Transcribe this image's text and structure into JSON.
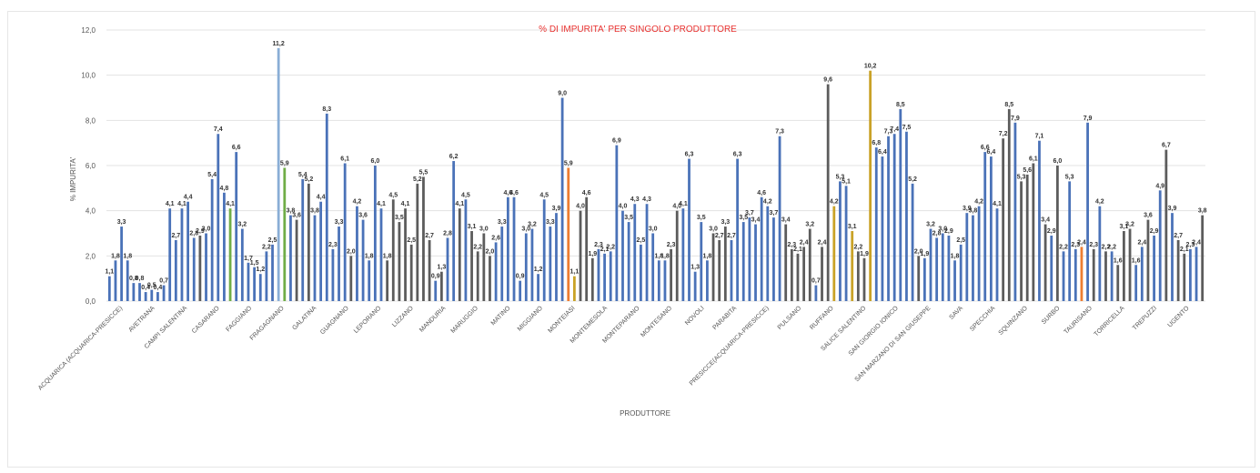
{
  "chart_data": {
    "type": "bar",
    "title": "% DI IMPURITA' PER SINGOLO PRODUTTORE",
    "xlabel": "PRODUTTORE",
    "ylabel": "% IMPURITA'",
    "ylim": [
      0,
      12
    ],
    "yticks": [
      "0,0",
      "2,0",
      "4,0",
      "6,0",
      "8,0",
      "10,0",
      "12,0"
    ],
    "grid": true,
    "legend": "none",
    "series_colors": [
      "#4a72b8",
      "#5c5c5c",
      "#70ad47",
      "#c9a227",
      "#ed7d31",
      "#8aaed6"
    ],
    "category_labels": [
      "ACQUARICA (ACQUARICA-PRESICCE)",
      "AVETRANA",
      "CAMPI SALENTINA",
      "CASARANO",
      "FAGGIANO",
      "FRAGAGNANO",
      "GALATINA",
      "GUAGNANO",
      "LEPORANO",
      "LIZZANO",
      "MANDURIA",
      "MARUGGIO",
      "MATINO",
      "MIGGIANO",
      "MONTEIASI",
      "MONTEMESOLA",
      "MONTEPARANO",
      "MONTESANO",
      "NOVOLI",
      "PARABITA",
      "PRESICCE(ACQUARICA-PRESICCE)",
      "PULSANO",
      "RUFFANO",
      "SALICE SALENTINO",
      "SAN GIORGIO IONICO",
      "SAN MARZANO DI SAN GIUSEPPE",
      "SAVA",
      "SPECCHIA",
      "SQUINZANO",
      "SURBO",
      "TAURISANO",
      "TORRICELLA",
      "TREPUZZI",
      "UGENTO"
    ],
    "bars": [
      {
        "v": 1.1,
        "c": 0
      },
      {
        "v": 1.8,
        "c": 0
      },
      {
        "v": 3.3,
        "c": 0
      },
      {
        "v": 1.8,
        "c": 0
      },
      {
        "v": 0.8,
        "c": 0
      },
      {
        "v": 0.8,
        "c": 0
      },
      {
        "v": 0.4,
        "c": 0
      },
      {
        "v": 0.5,
        "c": 0
      },
      {
        "v": 0.4,
        "c": 0
      },
      {
        "v": 0.7,
        "c": 0
      },
      {
        "v": 4.1,
        "c": 0
      },
      {
        "v": 2.7,
        "c": 0
      },
      {
        "v": 4.1,
        "c": 0
      },
      {
        "v": 4.4,
        "c": 0
      },
      {
        "v": 2.8,
        "c": 0
      },
      {
        "v": 2.9,
        "c": 1
      },
      {
        "v": 3.0,
        "c": 0
      },
      {
        "v": 5.4,
        "c": 0
      },
      {
        "v": 7.4,
        "c": 0
      },
      {
        "v": 4.8,
        "c": 0
      },
      {
        "v": 4.1,
        "c": 2
      },
      {
        "v": 6.6,
        "c": 0
      },
      {
        "v": 3.2,
        "c": 0
      },
      {
        "v": 1.7,
        "c": 0
      },
      {
        "v": 1.5,
        "c": 0
      },
      {
        "v": 1.2,
        "c": 0
      },
      {
        "v": 2.2,
        "c": 0
      },
      {
        "v": 2.5,
        "c": 0
      },
      {
        "v": 11.2,
        "c": 5
      },
      {
        "v": 5.9,
        "c": 2
      },
      {
        "v": 3.8,
        "c": 0
      },
      {
        "v": 3.6,
        "c": 1
      },
      {
        "v": 5.4,
        "c": 0
      },
      {
        "v": 5.2,
        "c": 1
      },
      {
        "v": 3.8,
        "c": 0
      },
      {
        "v": 4.4,
        "c": 0
      },
      {
        "v": 8.3,
        "c": 0
      },
      {
        "v": 2.3,
        "c": 0
      },
      {
        "v": 3.3,
        "c": 0
      },
      {
        "v": 6.1,
        "c": 0
      },
      {
        "v": 2.0,
        "c": 1
      },
      {
        "v": 4.2,
        "c": 0
      },
      {
        "v": 3.6,
        "c": 0
      },
      {
        "v": 1.8,
        "c": 0
      },
      {
        "v": 6.0,
        "c": 0
      },
      {
        "v": 4.1,
        "c": 0
      },
      {
        "v": 1.8,
        "c": 1
      },
      {
        "v": 4.5,
        "c": 1
      },
      {
        "v": 3.5,
        "c": 1
      },
      {
        "v": 4.1,
        "c": 1
      },
      {
        "v": 2.5,
        "c": 1
      },
      {
        "v": 5.2,
        "c": 1
      },
      {
        "v": 5.5,
        "c": 1
      },
      {
        "v": 2.7,
        "c": 1
      },
      {
        "v": 0.9,
        "c": 0
      },
      {
        "v": 1.3,
        "c": 1
      },
      {
        "v": 2.8,
        "c": 0
      },
      {
        "v": 6.2,
        "c": 0
      },
      {
        "v": 4.1,
        "c": 1
      },
      {
        "v": 4.5,
        "c": 0
      },
      {
        "v": 3.1,
        "c": 1
      },
      {
        "v": 2.2,
        "c": 1
      },
      {
        "v": 3.0,
        "c": 1
      },
      {
        "v": 2.0,
        "c": 1
      },
      {
        "v": 2.6,
        "c": 0
      },
      {
        "v": 3.3,
        "c": 0
      },
      {
        "v": 4.6,
        "c": 0
      },
      {
        "v": 4.6,
        "c": 0
      },
      {
        "v": 0.9,
        "c": 0
      },
      {
        "v": 3.0,
        "c": 0
      },
      {
        "v": 3.2,
        "c": 0
      },
      {
        "v": 1.2,
        "c": 0
      },
      {
        "v": 4.5,
        "c": 0
      },
      {
        "v": 3.3,
        "c": 0
      },
      {
        "v": 3.9,
        "c": 0
      },
      {
        "v": 9.0,
        "c": 0
      },
      {
        "v": 5.9,
        "c": 4
      },
      {
        "v": 1.1,
        "c": 3
      },
      {
        "v": 4.0,
        "c": 1
      },
      {
        "v": 4.6,
        "c": 1
      },
      {
        "v": 1.9,
        "c": 1
      },
      {
        "v": 2.3,
        "c": 0
      },
      {
        "v": 2.1,
        "c": 0
      },
      {
        "v": 2.2,
        "c": 0
      },
      {
        "v": 6.9,
        "c": 0
      },
      {
        "v": 4.0,
        "c": 0
      },
      {
        "v": 3.5,
        "c": 0
      },
      {
        "v": 4.3,
        "c": 0
      },
      {
        "v": 2.5,
        "c": 0
      },
      {
        "v": 4.3,
        "c": 0
      },
      {
        "v": 3.0,
        "c": 0
      },
      {
        "v": 1.8,
        "c": 0
      },
      {
        "v": 1.8,
        "c": 0
      },
      {
        "v": 2.3,
        "c": 1
      },
      {
        "v": 4.0,
        "c": 1
      },
      {
        "v": 4.1,
        "c": 0
      },
      {
        "v": 6.3,
        "c": 0
      },
      {
        "v": 1.3,
        "c": 0
      },
      {
        "v": 3.5,
        "c": 0
      },
      {
        "v": 1.8,
        "c": 0
      },
      {
        "v": 3.0,
        "c": 1
      },
      {
        "v": 2.7,
        "c": 1
      },
      {
        "v": 3.3,
        "c": 1
      },
      {
        "v": 2.7,
        "c": 0
      },
      {
        "v": 6.3,
        "c": 0
      },
      {
        "v": 3.5,
        "c": 0
      },
      {
        "v": 3.7,
        "c": 0
      },
      {
        "v": 3.4,
        "c": 0
      },
      {
        "v": 4.6,
        "c": 0
      },
      {
        "v": 4.2,
        "c": 0
      },
      {
        "v": 3.7,
        "c": 0
      },
      {
        "v": 7.3,
        "c": 0
      },
      {
        "v": 3.4,
        "c": 1
      },
      {
        "v": 2.3,
        "c": 1
      },
      {
        "v": 2.1,
        "c": 1
      },
      {
        "v": 2.4,
        "c": 1
      },
      {
        "v": 3.2,
        "c": 1
      },
      {
        "v": 0.7,
        "c": 0
      },
      {
        "v": 2.4,
        "c": 1
      },
      {
        "v": 9.6,
        "c": 1
      },
      {
        "v": 4.2,
        "c": 3
      },
      {
        "v": 5.3,
        "c": 0
      },
      {
        "v": 5.1,
        "c": 0
      },
      {
        "v": 3.1,
        "c": 3
      },
      {
        "v": 2.2,
        "c": 1
      },
      {
        "v": 1.9,
        "c": 1
      },
      {
        "v": 10.2,
        "c": 3
      },
      {
        "v": 6.8,
        "c": 0
      },
      {
        "v": 6.4,
        "c": 0
      },
      {
        "v": 7.3,
        "c": 0
      },
      {
        "v": 7.4,
        "c": 0
      },
      {
        "v": 8.5,
        "c": 0
      },
      {
        "v": 7.5,
        "c": 0
      },
      {
        "v": 5.2,
        "c": 0
      },
      {
        "v": 2.0,
        "c": 1
      },
      {
        "v": 1.9,
        "c": 0
      },
      {
        "v": 3.2,
        "c": 0
      },
      {
        "v": 2.8,
        "c": 0
      },
      {
        "v": 3.0,
        "c": 0
      },
      {
        "v": 2.9,
        "c": 0
      },
      {
        "v": 1.8,
        "c": 0
      },
      {
        "v": 2.5,
        "c": 0
      },
      {
        "v": 3.9,
        "c": 0
      },
      {
        "v": 3.8,
        "c": 0
      },
      {
        "v": 4.2,
        "c": 0
      },
      {
        "v": 6.6,
        "c": 0
      },
      {
        "v": 6.4,
        "c": 0
      },
      {
        "v": 4.1,
        "c": 0
      },
      {
        "v": 7.2,
        "c": 1
      },
      {
        "v": 8.5,
        "c": 1
      },
      {
        "v": 7.9,
        "c": 0
      },
      {
        "v": 5.3,
        "c": 1
      },
      {
        "v": 5.6,
        "c": 1
      },
      {
        "v": 6.1,
        "c": 1
      },
      {
        "v": 7.1,
        "c": 0
      },
      {
        "v": 3.4,
        "c": 1
      },
      {
        "v": 2.9,
        "c": 0
      },
      {
        "v": 6.0,
        "c": 1
      },
      {
        "v": 2.2,
        "c": 0
      },
      {
        "v": 5.3,
        "c": 0
      },
      {
        "v": 2.3,
        "c": 0
      },
      {
        "v": 2.4,
        "c": 4
      },
      {
        "v": 7.9,
        "c": 0
      },
      {
        "v": 2.3,
        "c": 1
      },
      {
        "v": 4.2,
        "c": 0
      },
      {
        "v": 2.2,
        "c": 1
      },
      {
        "v": 2.2,
        "c": 0
      },
      {
        "v": 1.6,
        "c": 1
      },
      {
        "v": 3.1,
        "c": 1
      },
      {
        "v": 3.2,
        "c": 1
      },
      {
        "v": 1.6,
        "c": 0
      },
      {
        "v": 2.4,
        "c": 0
      },
      {
        "v": 3.6,
        "c": 1
      },
      {
        "v": 2.9,
        "c": 0
      },
      {
        "v": 4.9,
        "c": 0
      },
      {
        "v": 6.7,
        "c": 1
      },
      {
        "v": 3.9,
        "c": 0
      },
      {
        "v": 2.7,
        "c": 1
      },
      {
        "v": 2.1,
        "c": 1
      },
      {
        "v": 2.3,
        "c": 0
      },
      {
        "v": 2.4,
        "c": 0
      },
      {
        "v": 3.8,
        "c": 1
      }
    ]
  }
}
